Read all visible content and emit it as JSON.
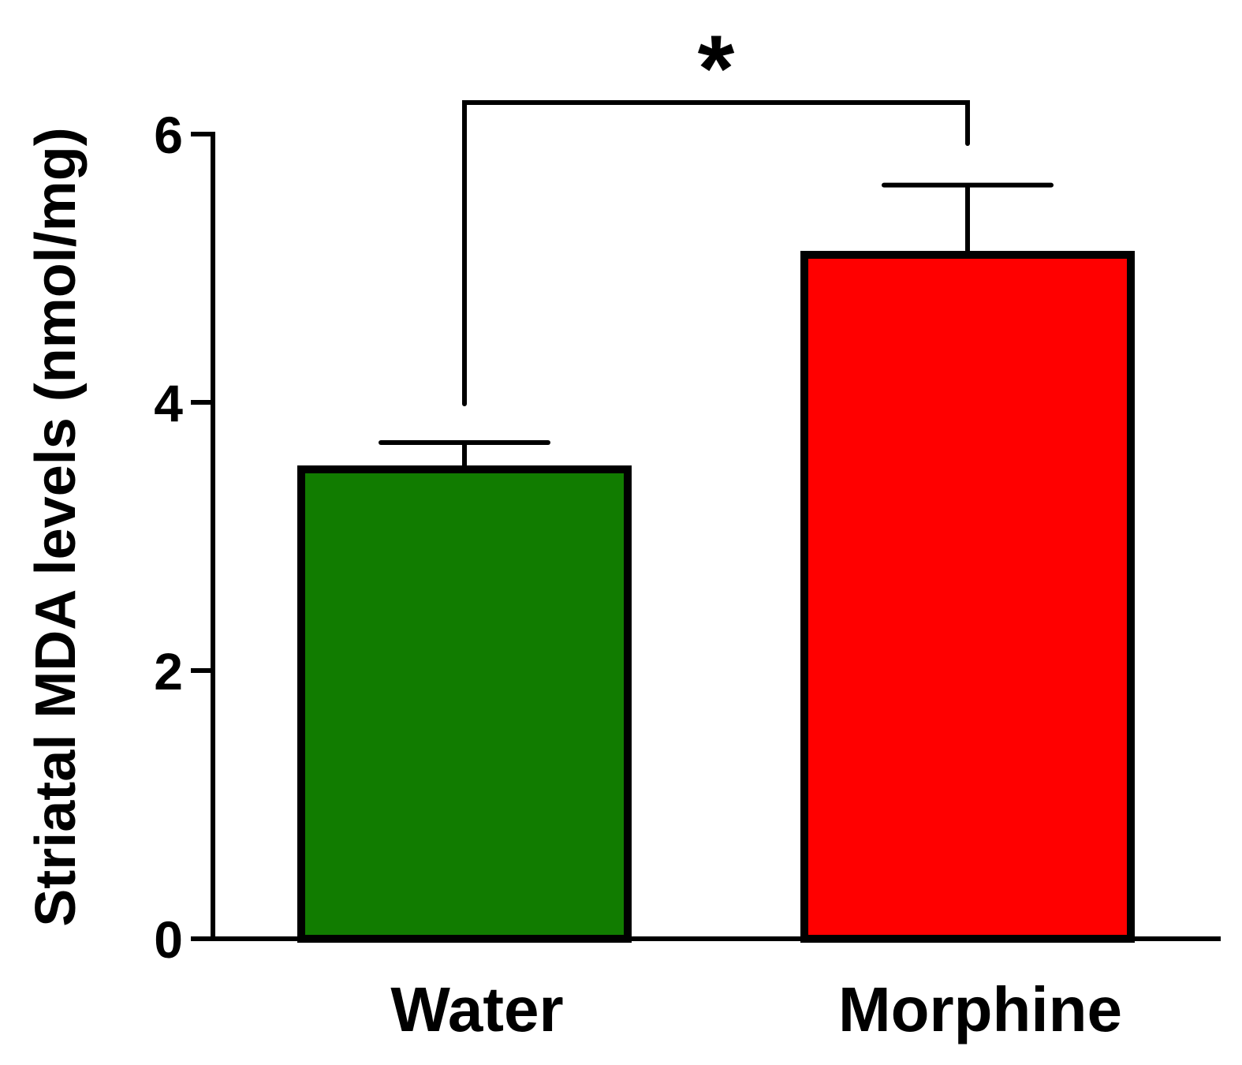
{
  "chart_data": {
    "type": "bar",
    "title": "",
    "xlabel": "",
    "ylabel": "Striatal MDA levels (nmol/mg)",
    "ylim": [
      0,
      6
    ],
    "yticks": [
      0,
      2,
      4,
      6
    ],
    "ytick_labels": [
      "0",
      "2",
      "4",
      "6"
    ],
    "grid": false,
    "legend": "none",
    "categories": [
      "Water",
      "Morphine"
    ],
    "values": [
      3.5,
      5.1
    ],
    "error_upper": [
      0.2,
      0.52
    ],
    "colors": [
      "#117c00",
      "#ff0000"
    ],
    "edge_color": "#000000",
    "significance": {
      "label": "*",
      "between": [
        0,
        1
      ]
    }
  }
}
